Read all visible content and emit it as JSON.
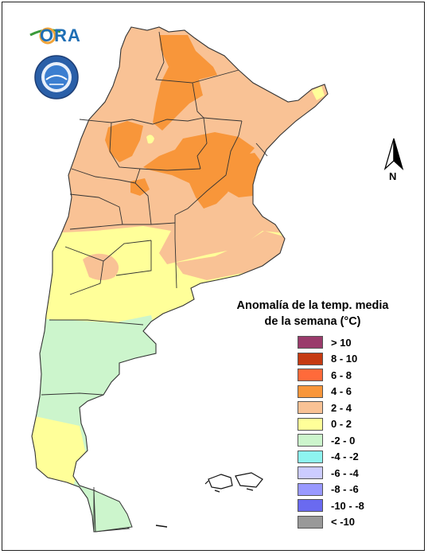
{
  "logo": {
    "text": "ORA",
    "colors": [
      "#1f6fb5",
      "#f0a43a",
      "#3a9a3a"
    ]
  },
  "seal": {
    "name": "servicio meteorologico nacional seal",
    "color": "#2a5fa8"
  },
  "north_arrow": {
    "label": "N"
  },
  "legend": {
    "title_line1": "Anomalía de la temp. media",
    "title_line2": "de la semana (°C)",
    "items": [
      {
        "label": "> 10",
        "color": "#9a3b6b"
      },
      {
        "label": "8 - 10",
        "color": "#c53a12"
      },
      {
        "label": "6 - 8",
        "color": "#ff6a3a"
      },
      {
        "label": "4 - 6",
        "color": "#f8963a"
      },
      {
        "label": "2 - 4",
        "color": "#f9c295"
      },
      {
        "label": "0 - 2",
        "color": "#ffff99"
      },
      {
        "label": "-2 - 0",
        "color": "#ccf5cc"
      },
      {
        "label": "-4 - -2",
        "color": "#8ef4f0"
      },
      {
        "label": "-6 - -4",
        "color": "#ccccff"
      },
      {
        "label": "-8 - -6",
        "color": "#9999ff"
      },
      {
        "label": "-10 - -8",
        "color": "#6a6af0"
      },
      {
        "label": "< -10",
        "color": "#999999"
      }
    ]
  },
  "map_fill": {
    "warm_4_6": "#f8963a",
    "mild_2_4": "#f9c295",
    "neutral_0_2": "#ffff99",
    "cool_m2_0": "#ccf5cc",
    "border": "#333333"
  }
}
